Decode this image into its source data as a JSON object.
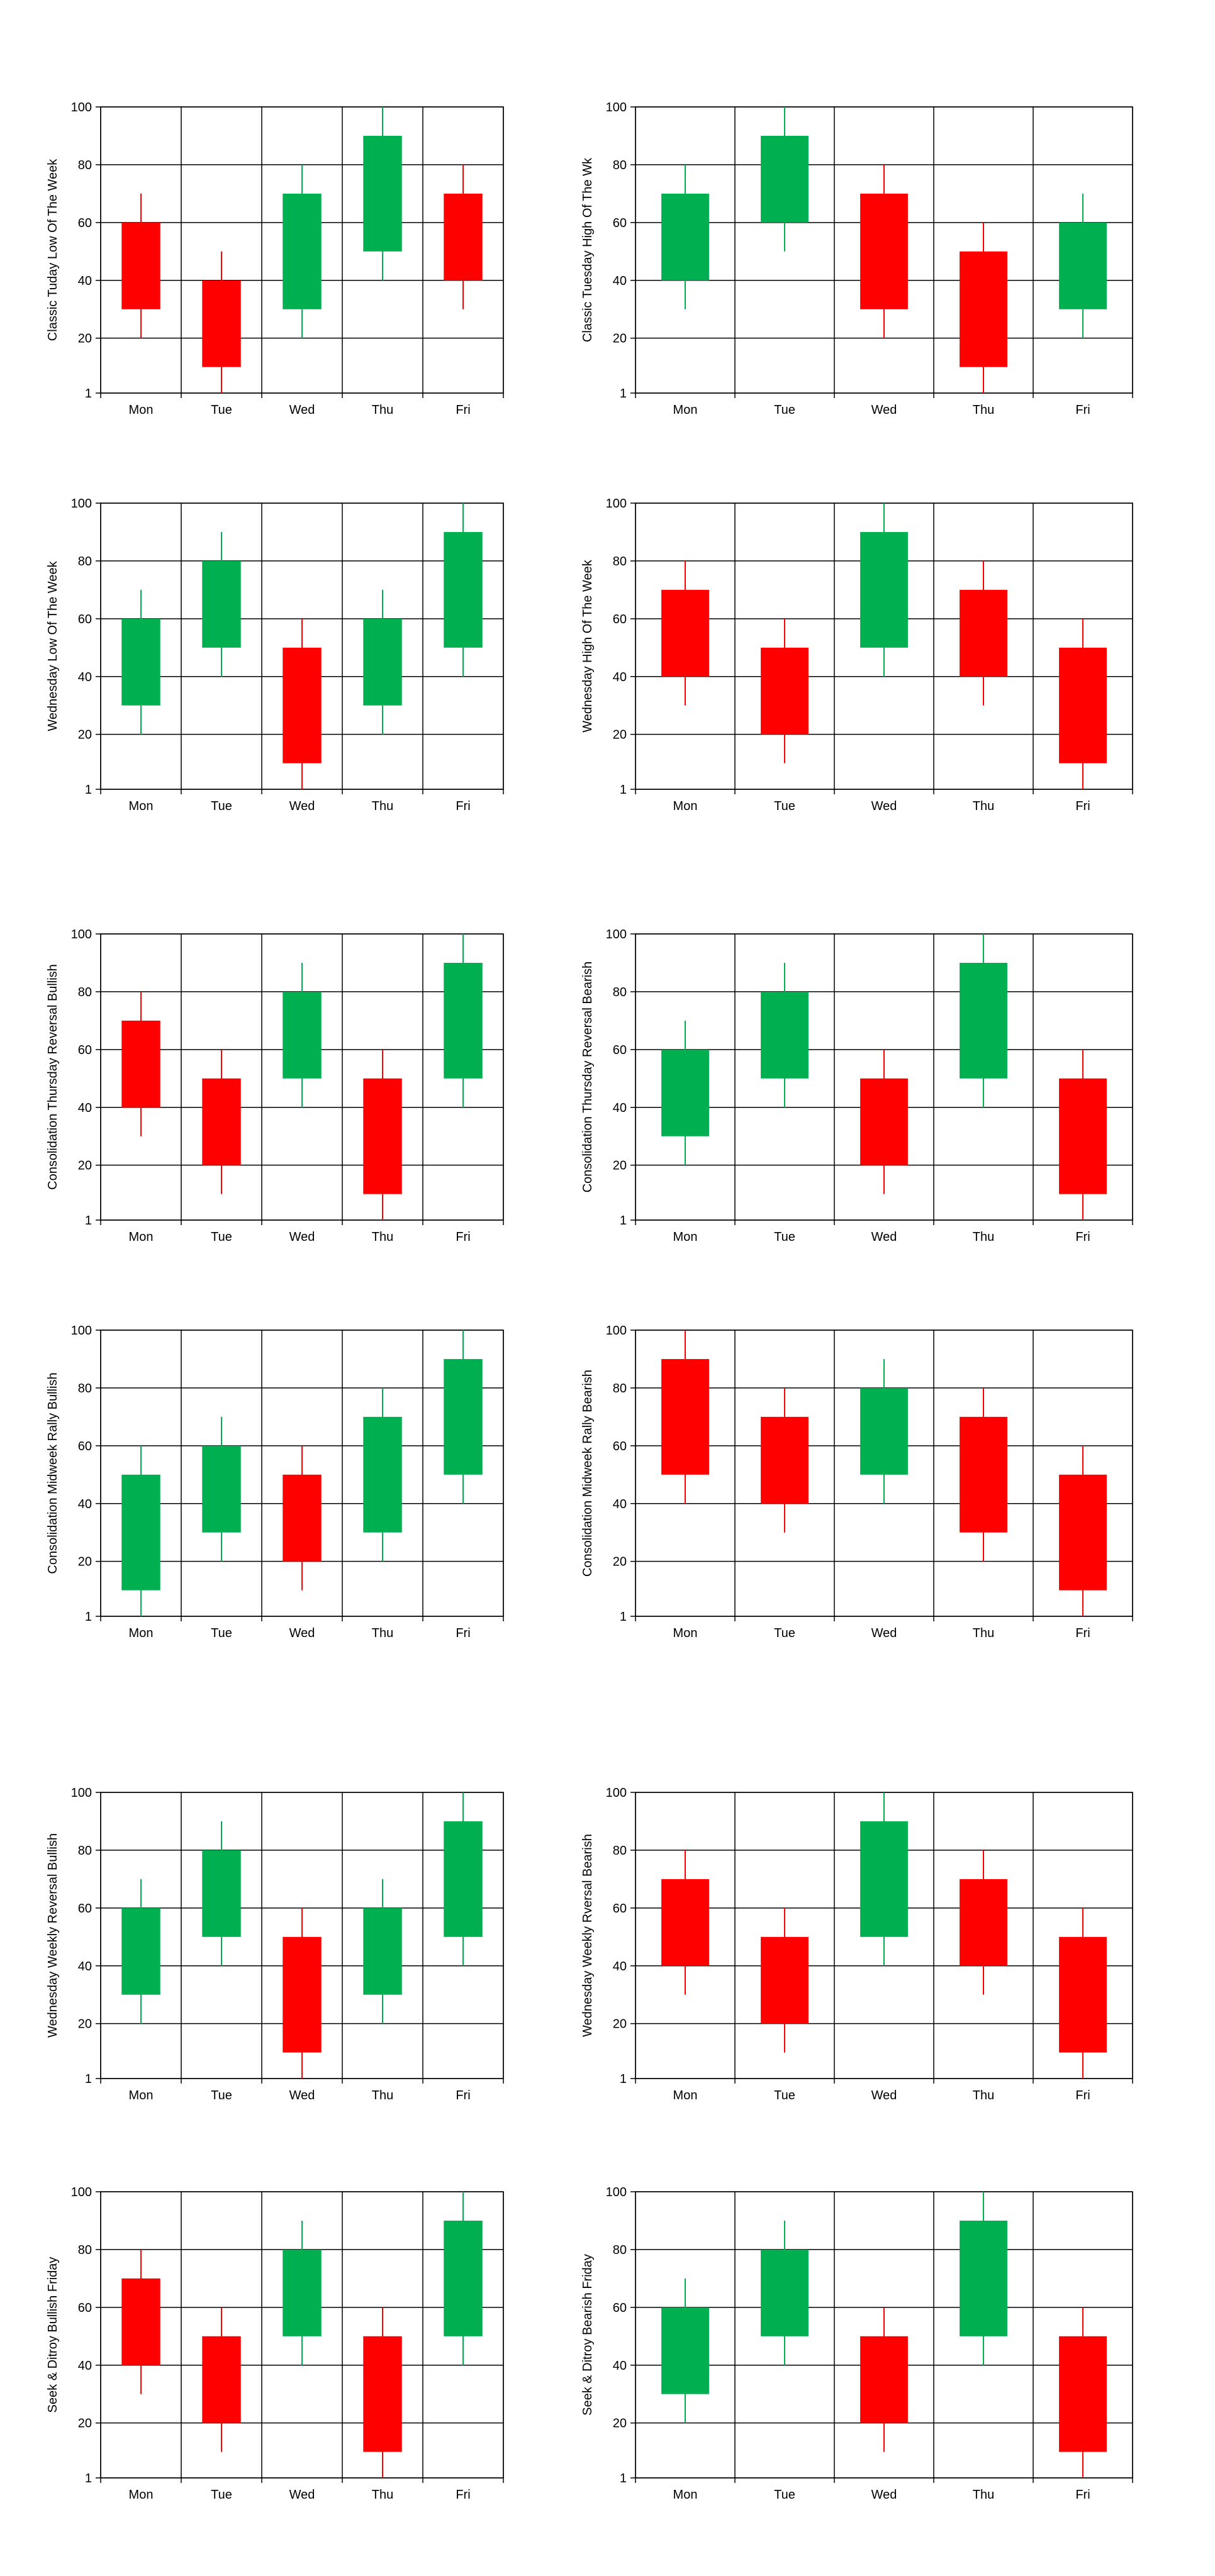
{
  "colors": {
    "bullish": "#00b050",
    "bearish": "#ff0000",
    "grid": "#000000"
  },
  "chart_data": [
    {
      "type": "candlestick",
      "ylabel": "Classic Tuday Low Of The Week",
      "ylim": [
        1,
        100
      ],
      "yticks": [
        "1",
        "20",
        "40",
        "60",
        "80",
        "100"
      ],
      "grid": true,
      "categories": [
        "Mon",
        "Tue",
        "Wed",
        "Thu",
        "Fri"
      ],
      "open": [
        60,
        40,
        30,
        50,
        70
      ],
      "close": [
        30,
        10,
        70,
        90,
        40
      ],
      "high": [
        70,
        50,
        80,
        100,
        80
      ],
      "low": [
        20,
        1,
        20,
        40,
        30
      ]
    },
    {
      "type": "candlestick",
      "ylabel": "Classic Tuesday High Of The Wk",
      "ylim": [
        1,
        100
      ],
      "yticks": [
        "1",
        "20",
        "40",
        "60",
        "80",
        "100"
      ],
      "grid": true,
      "categories": [
        "Mon",
        "Tue",
        "Wed",
        "Thu",
        "Fri"
      ],
      "open": [
        40,
        60,
        70,
        50,
        30
      ],
      "close": [
        70,
        90,
        30,
        10,
        60
      ],
      "high": [
        80,
        100,
        80,
        60,
        70
      ],
      "low": [
        30,
        50,
        20,
        1,
        20
      ]
    },
    {
      "type": "candlestick",
      "ylabel": "Wednesday Low Of The Week",
      "ylim": [
        1,
        100
      ],
      "yticks": [
        "1",
        "20",
        "40",
        "60",
        "80",
        "100"
      ],
      "grid": true,
      "categories": [
        "Mon",
        "Tue",
        "Wed",
        "Thu",
        "Fri"
      ],
      "open": [
        30,
        50,
        50,
        30,
        50
      ],
      "close": [
        60,
        80,
        10,
        60,
        90
      ],
      "high": [
        70,
        90,
        60,
        70,
        100
      ],
      "low": [
        20,
        40,
        1,
        20,
        40
      ]
    },
    {
      "type": "candlestick",
      "ylabel": "Wednesday High Of The Week",
      "ylim": [
        1,
        100
      ],
      "yticks": [
        "1",
        "20",
        "40",
        "60",
        "80",
        "100"
      ],
      "grid": true,
      "categories": [
        "Mon",
        "Tue",
        "Wed",
        "Thu",
        "Fri"
      ],
      "open": [
        70,
        50,
        50,
        70,
        50
      ],
      "close": [
        40,
        20,
        90,
        40,
        10
      ],
      "high": [
        80,
        60,
        100,
        80,
        60
      ],
      "low": [
        30,
        10,
        40,
        30,
        1
      ]
    },
    {
      "type": "candlestick",
      "ylabel": "Consolidation Thursday Reversal Bullish",
      "ylim": [
        1,
        100
      ],
      "yticks": [
        "1",
        "20",
        "40",
        "60",
        "80",
        "100"
      ],
      "grid": true,
      "categories": [
        "Mon",
        "Tue",
        "Wed",
        "Thu",
        "Fri"
      ],
      "open": [
        70,
        50,
        50,
        50,
        50
      ],
      "close": [
        40,
        20,
        80,
        10,
        90
      ],
      "high": [
        80,
        60,
        90,
        60,
        100
      ],
      "low": [
        30,
        10,
        40,
        1,
        40
      ]
    },
    {
      "type": "candlestick",
      "ylabel": "Consolidation Thursday Reversal Bearish",
      "ylim": [
        1,
        100
      ],
      "yticks": [
        "1",
        "20",
        "40",
        "60",
        "80",
        "100"
      ],
      "grid": true,
      "categories": [
        "Mon",
        "Tue",
        "Wed",
        "Thu",
        "Fri"
      ],
      "open": [
        30,
        50,
        50,
        50,
        50
      ],
      "close": [
        60,
        80,
        20,
        90,
        10
      ],
      "high": [
        70,
        90,
        60,
        100,
        60
      ],
      "low": [
        20,
        40,
        10,
        40,
        1
      ]
    },
    {
      "type": "candlestick",
      "ylabel": "Consolidation Midweek Rally Bullish",
      "ylim": [
        1,
        100
      ],
      "yticks": [
        "1",
        "20",
        "40",
        "60",
        "80",
        "100"
      ],
      "grid": true,
      "categories": [
        "Mon",
        "Tue",
        "Wed",
        "Thu",
        "Fri"
      ],
      "open": [
        10,
        30,
        50,
        30,
        50
      ],
      "close": [
        50,
        60,
        20,
        70,
        90
      ],
      "high": [
        60,
        70,
        60,
        80,
        100
      ],
      "low": [
        1,
        20,
        10,
        20,
        40
      ]
    },
    {
      "type": "candlestick",
      "ylabel": "Consolidation Midweek Rally Bearish",
      "ylim": [
        1,
        100
      ],
      "yticks": [
        "1",
        "20",
        "40",
        "60",
        "80",
        "100"
      ],
      "grid": true,
      "categories": [
        "Mon",
        "Tue",
        "Wed",
        "Thu",
        "Fri"
      ],
      "open": [
        90,
        70,
        50,
        70,
        50
      ],
      "close": [
        50,
        40,
        80,
        30,
        10
      ],
      "high": [
        100,
        80,
        90,
        80,
        60
      ],
      "low": [
        40,
        30,
        40,
        20,
        1
      ]
    },
    {
      "type": "candlestick",
      "ylabel": "Wednesday Weekly Reversal Bullish",
      "ylim": [
        1,
        100
      ],
      "yticks": [
        "1",
        "20",
        "40",
        "60",
        "80",
        "100"
      ],
      "grid": true,
      "categories": [
        "Mon",
        "Tue",
        "Wed",
        "Thu",
        "Fri"
      ],
      "open": [
        30,
        50,
        50,
        30,
        50
      ],
      "close": [
        60,
        80,
        10,
        60,
        90
      ],
      "high": [
        70,
        90,
        60,
        70,
        100
      ],
      "low": [
        20,
        40,
        1,
        20,
        40
      ]
    },
    {
      "type": "candlestick",
      "ylabel": "Wednesday Weekly Rversal Bearish",
      "ylim": [
        1,
        100
      ],
      "yticks": [
        "1",
        "20",
        "40",
        "60",
        "80",
        "100"
      ],
      "grid": true,
      "categories": [
        "Mon",
        "Tue",
        "Wed",
        "Thu",
        "Fri"
      ],
      "open": [
        70,
        50,
        50,
        70,
        50
      ],
      "close": [
        40,
        20,
        90,
        40,
        10
      ],
      "high": [
        80,
        60,
        100,
        80,
        60
      ],
      "low": [
        30,
        10,
        40,
        30,
        1
      ]
    },
    {
      "type": "candlestick",
      "ylabel": "Seek & Ditroy Bullish Friday",
      "ylim": [
        1,
        100
      ],
      "yticks": [
        "1",
        "20",
        "40",
        "60",
        "80",
        "100"
      ],
      "grid": true,
      "categories": [
        "Mon",
        "Tue",
        "Wed",
        "Thu",
        "Fri"
      ],
      "open": [
        70,
        50,
        50,
        50,
        50
      ],
      "close": [
        40,
        20,
        80,
        10,
        90
      ],
      "high": [
        80,
        60,
        90,
        60,
        100
      ],
      "low": [
        30,
        10,
        40,
        1,
        40
      ]
    },
    {
      "type": "candlestick",
      "ylabel": "Seek & Ditroy Bearish Friday",
      "ylim": [
        1,
        100
      ],
      "yticks": [
        "1",
        "20",
        "40",
        "60",
        "80",
        "100"
      ],
      "grid": true,
      "categories": [
        "Mon",
        "Tue",
        "Wed",
        "Thu",
        "Fri"
      ],
      "open": [
        30,
        50,
        50,
        50,
        50
      ],
      "close": [
        60,
        80,
        20,
        90,
        10
      ],
      "high": [
        70,
        90,
        60,
        100,
        60
      ],
      "low": [
        20,
        40,
        10,
        40,
        1
      ]
    }
  ]
}
